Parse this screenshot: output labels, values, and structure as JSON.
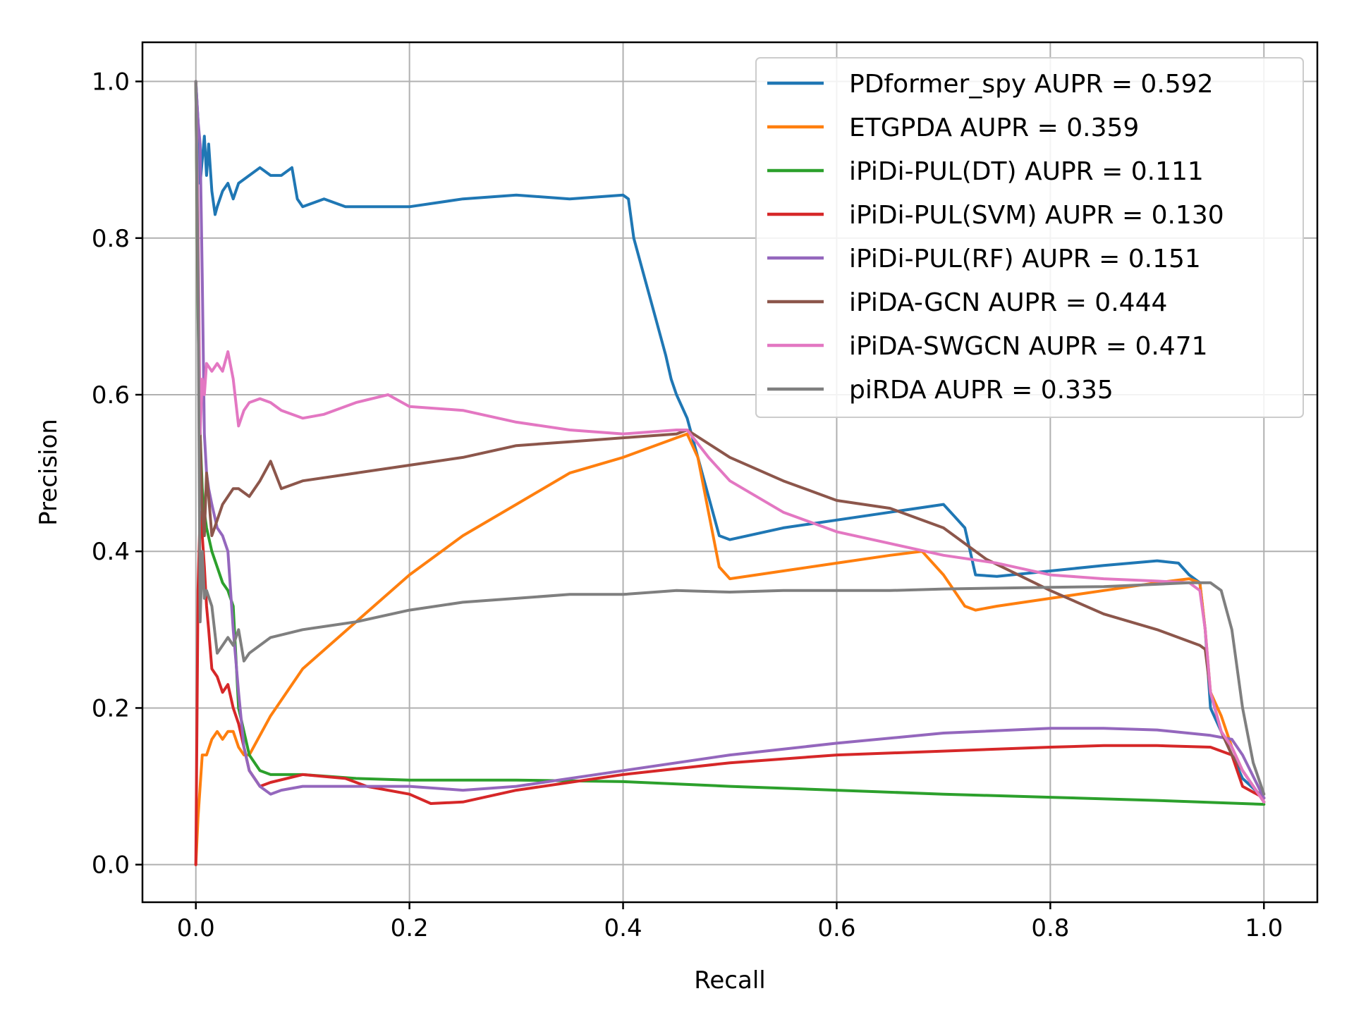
{
  "chart_data": {
    "type": "line",
    "title": "",
    "xlabel": "Recall",
    "ylabel": "Precision",
    "xlim": [
      -0.05,
      1.05
    ],
    "ylim": [
      -0.048,
      1.05
    ],
    "xticks": [
      0.0,
      0.2,
      0.4,
      0.6,
      0.8,
      1.0
    ],
    "yticks": [
      0.0,
      0.2,
      0.4,
      0.6,
      0.8,
      1.0
    ],
    "xtick_labels": [
      "0.0",
      "0.2",
      "0.4",
      "0.6",
      "0.8",
      "1.0"
    ],
    "ytick_labels": [
      "0.0",
      "0.2",
      "0.4",
      "0.6",
      "0.8",
      "1.0"
    ],
    "grid": true,
    "legend_position": "top-right",
    "series": [
      {
        "name": "PDformer_spy AUPR = 0.592",
        "color": "#1f77b4",
        "x": [
          0.0,
          0.002,
          0.004,
          0.006,
          0.008,
          0.01,
          0.012,
          0.015,
          0.018,
          0.02,
          0.025,
          0.03,
          0.035,
          0.04,
          0.05,
          0.06,
          0.07,
          0.08,
          0.09,
          0.095,
          0.1,
          0.12,
          0.14,
          0.16,
          0.2,
          0.25,
          0.3,
          0.35,
          0.4,
          0.405,
          0.41,
          0.42,
          0.43,
          0.44,
          0.445,
          0.45,
          0.46,
          0.47,
          0.48,
          0.49,
          0.5,
          0.55,
          0.6,
          0.65,
          0.7,
          0.71,
          0.72,
          0.73,
          0.75,
          0.8,
          0.85,
          0.9,
          0.92,
          0.93,
          0.94,
          0.945,
          0.95,
          0.96,
          0.97,
          0.98,
          1.0
        ],
        "y": [
          1.0,
          0.95,
          0.87,
          0.9,
          0.93,
          0.88,
          0.92,
          0.86,
          0.83,
          0.84,
          0.86,
          0.87,
          0.85,
          0.87,
          0.88,
          0.89,
          0.88,
          0.88,
          0.89,
          0.85,
          0.84,
          0.85,
          0.84,
          0.84,
          0.84,
          0.85,
          0.855,
          0.85,
          0.855,
          0.85,
          0.8,
          0.75,
          0.7,
          0.65,
          0.62,
          0.6,
          0.57,
          0.52,
          0.47,
          0.42,
          0.415,
          0.43,
          0.44,
          0.45,
          0.46,
          0.445,
          0.43,
          0.37,
          0.368,
          0.375,
          0.382,
          0.388,
          0.385,
          0.37,
          0.36,
          0.3,
          0.2,
          0.17,
          0.14,
          0.11,
          0.085
        ]
      },
      {
        "name": "ETGPDA AUPR = 0.359",
        "color": "#ff7f0e",
        "x": [
          0.0,
          0.002,
          0.004,
          0.006,
          0.01,
          0.015,
          0.02,
          0.025,
          0.03,
          0.035,
          0.04,
          0.045,
          0.05,
          0.07,
          0.1,
          0.15,
          0.2,
          0.25,
          0.3,
          0.35,
          0.4,
          0.45,
          0.46,
          0.47,
          0.48,
          0.49,
          0.5,
          0.55,
          0.6,
          0.65,
          0.68,
          0.7,
          0.72,
          0.73,
          0.75,
          0.8,
          0.85,
          0.9,
          0.93,
          0.94,
          0.945,
          0.95,
          0.96,
          0.97,
          0.98,
          1.0
        ],
        "y": [
          0.0,
          0.06,
          0.1,
          0.14,
          0.14,
          0.16,
          0.17,
          0.16,
          0.17,
          0.17,
          0.15,
          0.14,
          0.14,
          0.19,
          0.25,
          0.31,
          0.37,
          0.42,
          0.46,
          0.5,
          0.52,
          0.545,
          0.55,
          0.52,
          0.45,
          0.38,
          0.365,
          0.375,
          0.385,
          0.395,
          0.4,
          0.37,
          0.33,
          0.325,
          0.33,
          0.34,
          0.35,
          0.36,
          0.365,
          0.36,
          0.3,
          0.22,
          0.19,
          0.15,
          0.12,
          0.08
        ]
      },
      {
        "name": "iPiDi-PUL(DT) AUPR = 0.111",
        "color": "#2ca02c",
        "x": [
          0.0,
          0.002,
          0.004,
          0.006,
          0.008,
          0.01,
          0.015,
          0.02,
          0.025,
          0.03,
          0.035,
          0.04,
          0.05,
          0.06,
          0.07,
          0.1,
          0.15,
          0.2,
          0.3,
          0.4,
          0.5,
          0.6,
          0.7,
          0.8,
          0.9,
          1.0
        ],
        "y": [
          1.0,
          0.7,
          0.55,
          0.48,
          0.45,
          0.43,
          0.4,
          0.38,
          0.36,
          0.35,
          0.33,
          0.2,
          0.14,
          0.12,
          0.115,
          0.115,
          0.11,
          0.108,
          0.108,
          0.106,
          0.1,
          0.095,
          0.09,
          0.086,
          0.082,
          0.077
        ]
      },
      {
        "name": "iPiDi-PUL(SVM) AUPR = 0.130",
        "color": "#d62728",
        "x": [
          0.0,
          0.002,
          0.004,
          0.006,
          0.008,
          0.01,
          0.012,
          0.015,
          0.02,
          0.025,
          0.03,
          0.035,
          0.04,
          0.045,
          0.05,
          0.06,
          0.07,
          0.1,
          0.14,
          0.16,
          0.2,
          0.22,
          0.25,
          0.3,
          0.35,
          0.4,
          0.5,
          0.6,
          0.7,
          0.8,
          0.85,
          0.9,
          0.95,
          0.97,
          0.98,
          1.0
        ],
        "y": [
          0.0,
          0.35,
          0.45,
          0.42,
          0.38,
          0.33,
          0.3,
          0.25,
          0.24,
          0.22,
          0.23,
          0.2,
          0.18,
          0.15,
          0.12,
          0.1,
          0.105,
          0.115,
          0.11,
          0.1,
          0.09,
          0.078,
          0.08,
          0.095,
          0.105,
          0.115,
          0.13,
          0.14,
          0.145,
          0.15,
          0.152,
          0.152,
          0.15,
          0.14,
          0.1,
          0.085
        ]
      },
      {
        "name": "iPiDi-PUL(RF) AUPR = 0.151",
        "color": "#9467bd",
        "x": [
          0.0,
          0.002,
          0.004,
          0.006,
          0.008,
          0.01,
          0.012,
          0.015,
          0.02,
          0.025,
          0.03,
          0.035,
          0.04,
          0.045,
          0.05,
          0.06,
          0.07,
          0.08,
          0.1,
          0.15,
          0.2,
          0.25,
          0.3,
          0.4,
          0.5,
          0.6,
          0.7,
          0.8,
          0.85,
          0.9,
          0.95,
          0.97,
          0.98,
          1.0
        ],
        "y": [
          1.0,
          0.95,
          0.92,
          0.75,
          0.55,
          0.5,
          0.48,
          0.46,
          0.43,
          0.42,
          0.4,
          0.3,
          0.22,
          0.15,
          0.12,
          0.1,
          0.09,
          0.095,
          0.1,
          0.1,
          0.1,
          0.095,
          0.1,
          0.12,
          0.14,
          0.155,
          0.168,
          0.174,
          0.174,
          0.172,
          0.165,
          0.16,
          0.14,
          0.085
        ]
      },
      {
        "name": "iPiDA-GCN AUPR = 0.444",
        "color": "#8c564b",
        "x": [
          0.0,
          0.002,
          0.004,
          0.006,
          0.008,
          0.01,
          0.012,
          0.015,
          0.02,
          0.025,
          0.03,
          0.035,
          0.04,
          0.05,
          0.06,
          0.07,
          0.08,
          0.1,
          0.15,
          0.2,
          0.25,
          0.3,
          0.35,
          0.4,
          0.45,
          0.46,
          0.5,
          0.55,
          0.6,
          0.65,
          0.7,
          0.72,
          0.74,
          0.8,
          0.85,
          0.9,
          0.94,
          0.945,
          0.95,
          0.96,
          0.97,
          0.98,
          1.0
        ],
        "y": [
          1.0,
          0.72,
          0.55,
          0.45,
          0.42,
          0.5,
          0.47,
          0.42,
          0.44,
          0.46,
          0.47,
          0.48,
          0.48,
          0.47,
          0.49,
          0.515,
          0.48,
          0.49,
          0.5,
          0.51,
          0.52,
          0.535,
          0.54,
          0.545,
          0.55,
          0.555,
          0.52,
          0.49,
          0.465,
          0.455,
          0.43,
          0.41,
          0.39,
          0.35,
          0.32,
          0.3,
          0.28,
          0.275,
          0.22,
          0.17,
          0.14,
          0.12,
          0.08
        ]
      },
      {
        "name": "iPiDA-SWGCN AUPR = 0.471",
        "color": "#e377c2",
        "x": [
          0.0,
          0.002,
          0.004,
          0.006,
          0.008,
          0.01,
          0.015,
          0.02,
          0.025,
          0.03,
          0.035,
          0.04,
          0.045,
          0.05,
          0.06,
          0.07,
          0.08,
          0.1,
          0.12,
          0.15,
          0.18,
          0.2,
          0.25,
          0.3,
          0.35,
          0.4,
          0.45,
          0.46,
          0.48,
          0.5,
          0.55,
          0.6,
          0.65,
          0.7,
          0.75,
          0.8,
          0.85,
          0.9,
          0.93,
          0.94,
          0.945,
          0.95,
          0.96,
          0.97,
          0.98,
          1.0
        ],
        "y": [
          1.0,
          0.83,
          0.55,
          0.62,
          0.6,
          0.64,
          0.63,
          0.64,
          0.63,
          0.655,
          0.62,
          0.56,
          0.58,
          0.59,
          0.595,
          0.59,
          0.58,
          0.57,
          0.575,
          0.59,
          0.6,
          0.585,
          0.58,
          0.565,
          0.555,
          0.55,
          0.555,
          0.555,
          0.52,
          0.49,
          0.45,
          0.425,
          0.41,
          0.395,
          0.385,
          0.37,
          0.365,
          0.362,
          0.36,
          0.35,
          0.3,
          0.22,
          0.17,
          0.15,
          0.12,
          0.08
        ]
      },
      {
        "name": "piRDA AUPR = 0.335",
        "color": "#7f7f7f",
        "x": [
          0.0,
          0.002,
          0.004,
          0.006,
          0.008,
          0.01,
          0.015,
          0.02,
          0.025,
          0.03,
          0.035,
          0.04,
          0.045,
          0.05,
          0.07,
          0.1,
          0.15,
          0.2,
          0.25,
          0.3,
          0.35,
          0.4,
          0.45,
          0.5,
          0.55,
          0.6,
          0.65,
          0.7,
          0.75,
          0.8,
          0.85,
          0.9,
          0.93,
          0.95,
          0.96,
          0.97,
          0.98,
          0.99,
          1.0
        ],
        "y": [
          1.0,
          0.75,
          0.31,
          0.4,
          0.34,
          0.35,
          0.33,
          0.27,
          0.28,
          0.29,
          0.28,
          0.3,
          0.26,
          0.27,
          0.29,
          0.3,
          0.31,
          0.325,
          0.335,
          0.34,
          0.345,
          0.345,
          0.35,
          0.348,
          0.35,
          0.35,
          0.35,
          0.352,
          0.353,
          0.354,
          0.355,
          0.358,
          0.36,
          0.36,
          0.35,
          0.3,
          0.2,
          0.13,
          0.09
        ]
      }
    ]
  }
}
